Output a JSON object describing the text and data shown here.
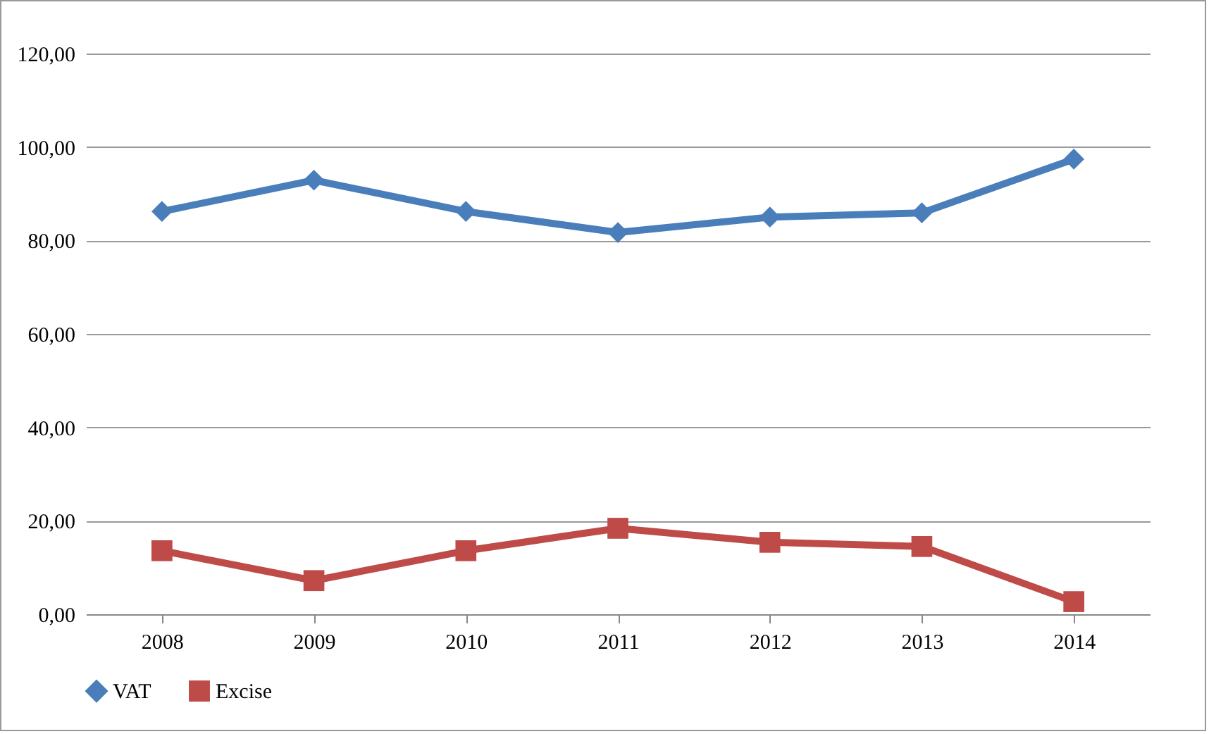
{
  "chart_data": {
    "type": "line",
    "categories": [
      "2008",
      "2009",
      "2010",
      "2011",
      "2012",
      "2013",
      "2014"
    ],
    "series": [
      {
        "name": "VAT",
        "color": "#4a7ebb",
        "marker": "diamond",
        "values": [
          86.2,
          92.9,
          86.2,
          81.7,
          85.0,
          85.9,
          97.4
        ]
      },
      {
        "name": "Excise",
        "color": "#be4b48",
        "marker": "square",
        "values": [
          13.6,
          7.2,
          13.6,
          18.4,
          15.4,
          14.5,
          2.7
        ]
      }
    ],
    "ylim": [
      0,
      120
    ],
    "yticks": [
      {
        "value": 0,
        "label": "0,00"
      },
      {
        "value": 20,
        "label": "20,00"
      },
      {
        "value": 40,
        "label": "40,00"
      },
      {
        "value": 60,
        "label": "60,00"
      },
      {
        "value": 80,
        "label": "80,00"
      },
      {
        "value": 100,
        "label": "100,00"
      },
      {
        "value": 120,
        "label": "120,00"
      }
    ],
    "grid": "y",
    "legend": "bottom",
    "line_style": "solid"
  }
}
